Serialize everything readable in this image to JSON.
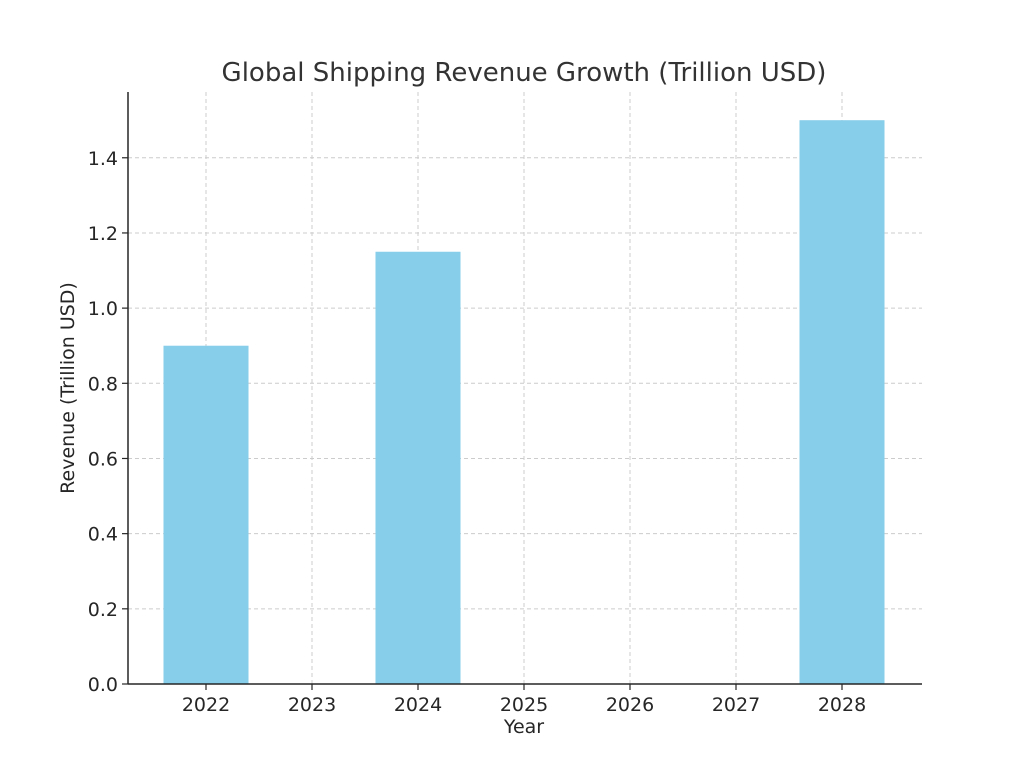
{
  "chart_data": {
    "type": "bar",
    "title": "Global Shipping Revenue Growth (Trillion USD)",
    "xlabel": "Year",
    "ylabel": "Revenue (Trillion USD)",
    "categories": [
      "2022",
      "2023",
      "2024",
      "2025",
      "2026",
      "2027",
      "2028"
    ],
    "values": [
      0.9,
      null,
      1.15,
      null,
      null,
      null,
      1.5
    ],
    "ylim": [
      0,
      1.575
    ],
    "yticks": [
      0.0,
      0.2,
      0.4,
      0.6,
      0.8,
      1.0,
      1.2,
      1.4
    ],
    "ytick_labels": [
      "0.0",
      "0.2",
      "0.4",
      "0.6",
      "0.8",
      "1.0",
      "1.2",
      "1.4"
    ],
    "grid": true,
    "bar_color": "#87CEEB"
  }
}
